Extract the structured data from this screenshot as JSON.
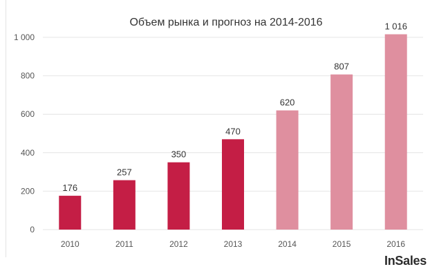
{
  "chart_data": {
    "type": "bar",
    "title": "Объем рынка и прогноз на 2014-2016",
    "xlabel": "",
    "ylabel": "",
    "ylim": [
      0,
      1000
    ],
    "y_ticks": [
      0,
      200,
      400,
      600,
      800,
      1000
    ],
    "y_tick_labels": [
      "0",
      "200",
      "400",
      "600",
      "800",
      "1 000"
    ],
    "categories": [
      "2010",
      "2011",
      "2012",
      "2013",
      "2014",
      "2015",
      "2016"
    ],
    "values": [
      176,
      257,
      350,
      470,
      620,
      807,
      1016
    ],
    "value_labels": [
      "176",
      "257",
      "350",
      "470",
      "620",
      "807",
      "1 016"
    ],
    "forecast": [
      false,
      false,
      false,
      false,
      true,
      true,
      true
    ],
    "grid": true,
    "colors": {
      "actual": "#c41e45",
      "forecast": "#df8f9f",
      "grid": "#e4e4e4",
      "text": "#555555",
      "title": "#333333"
    }
  },
  "brand": {
    "logo_text": "InSales"
  }
}
